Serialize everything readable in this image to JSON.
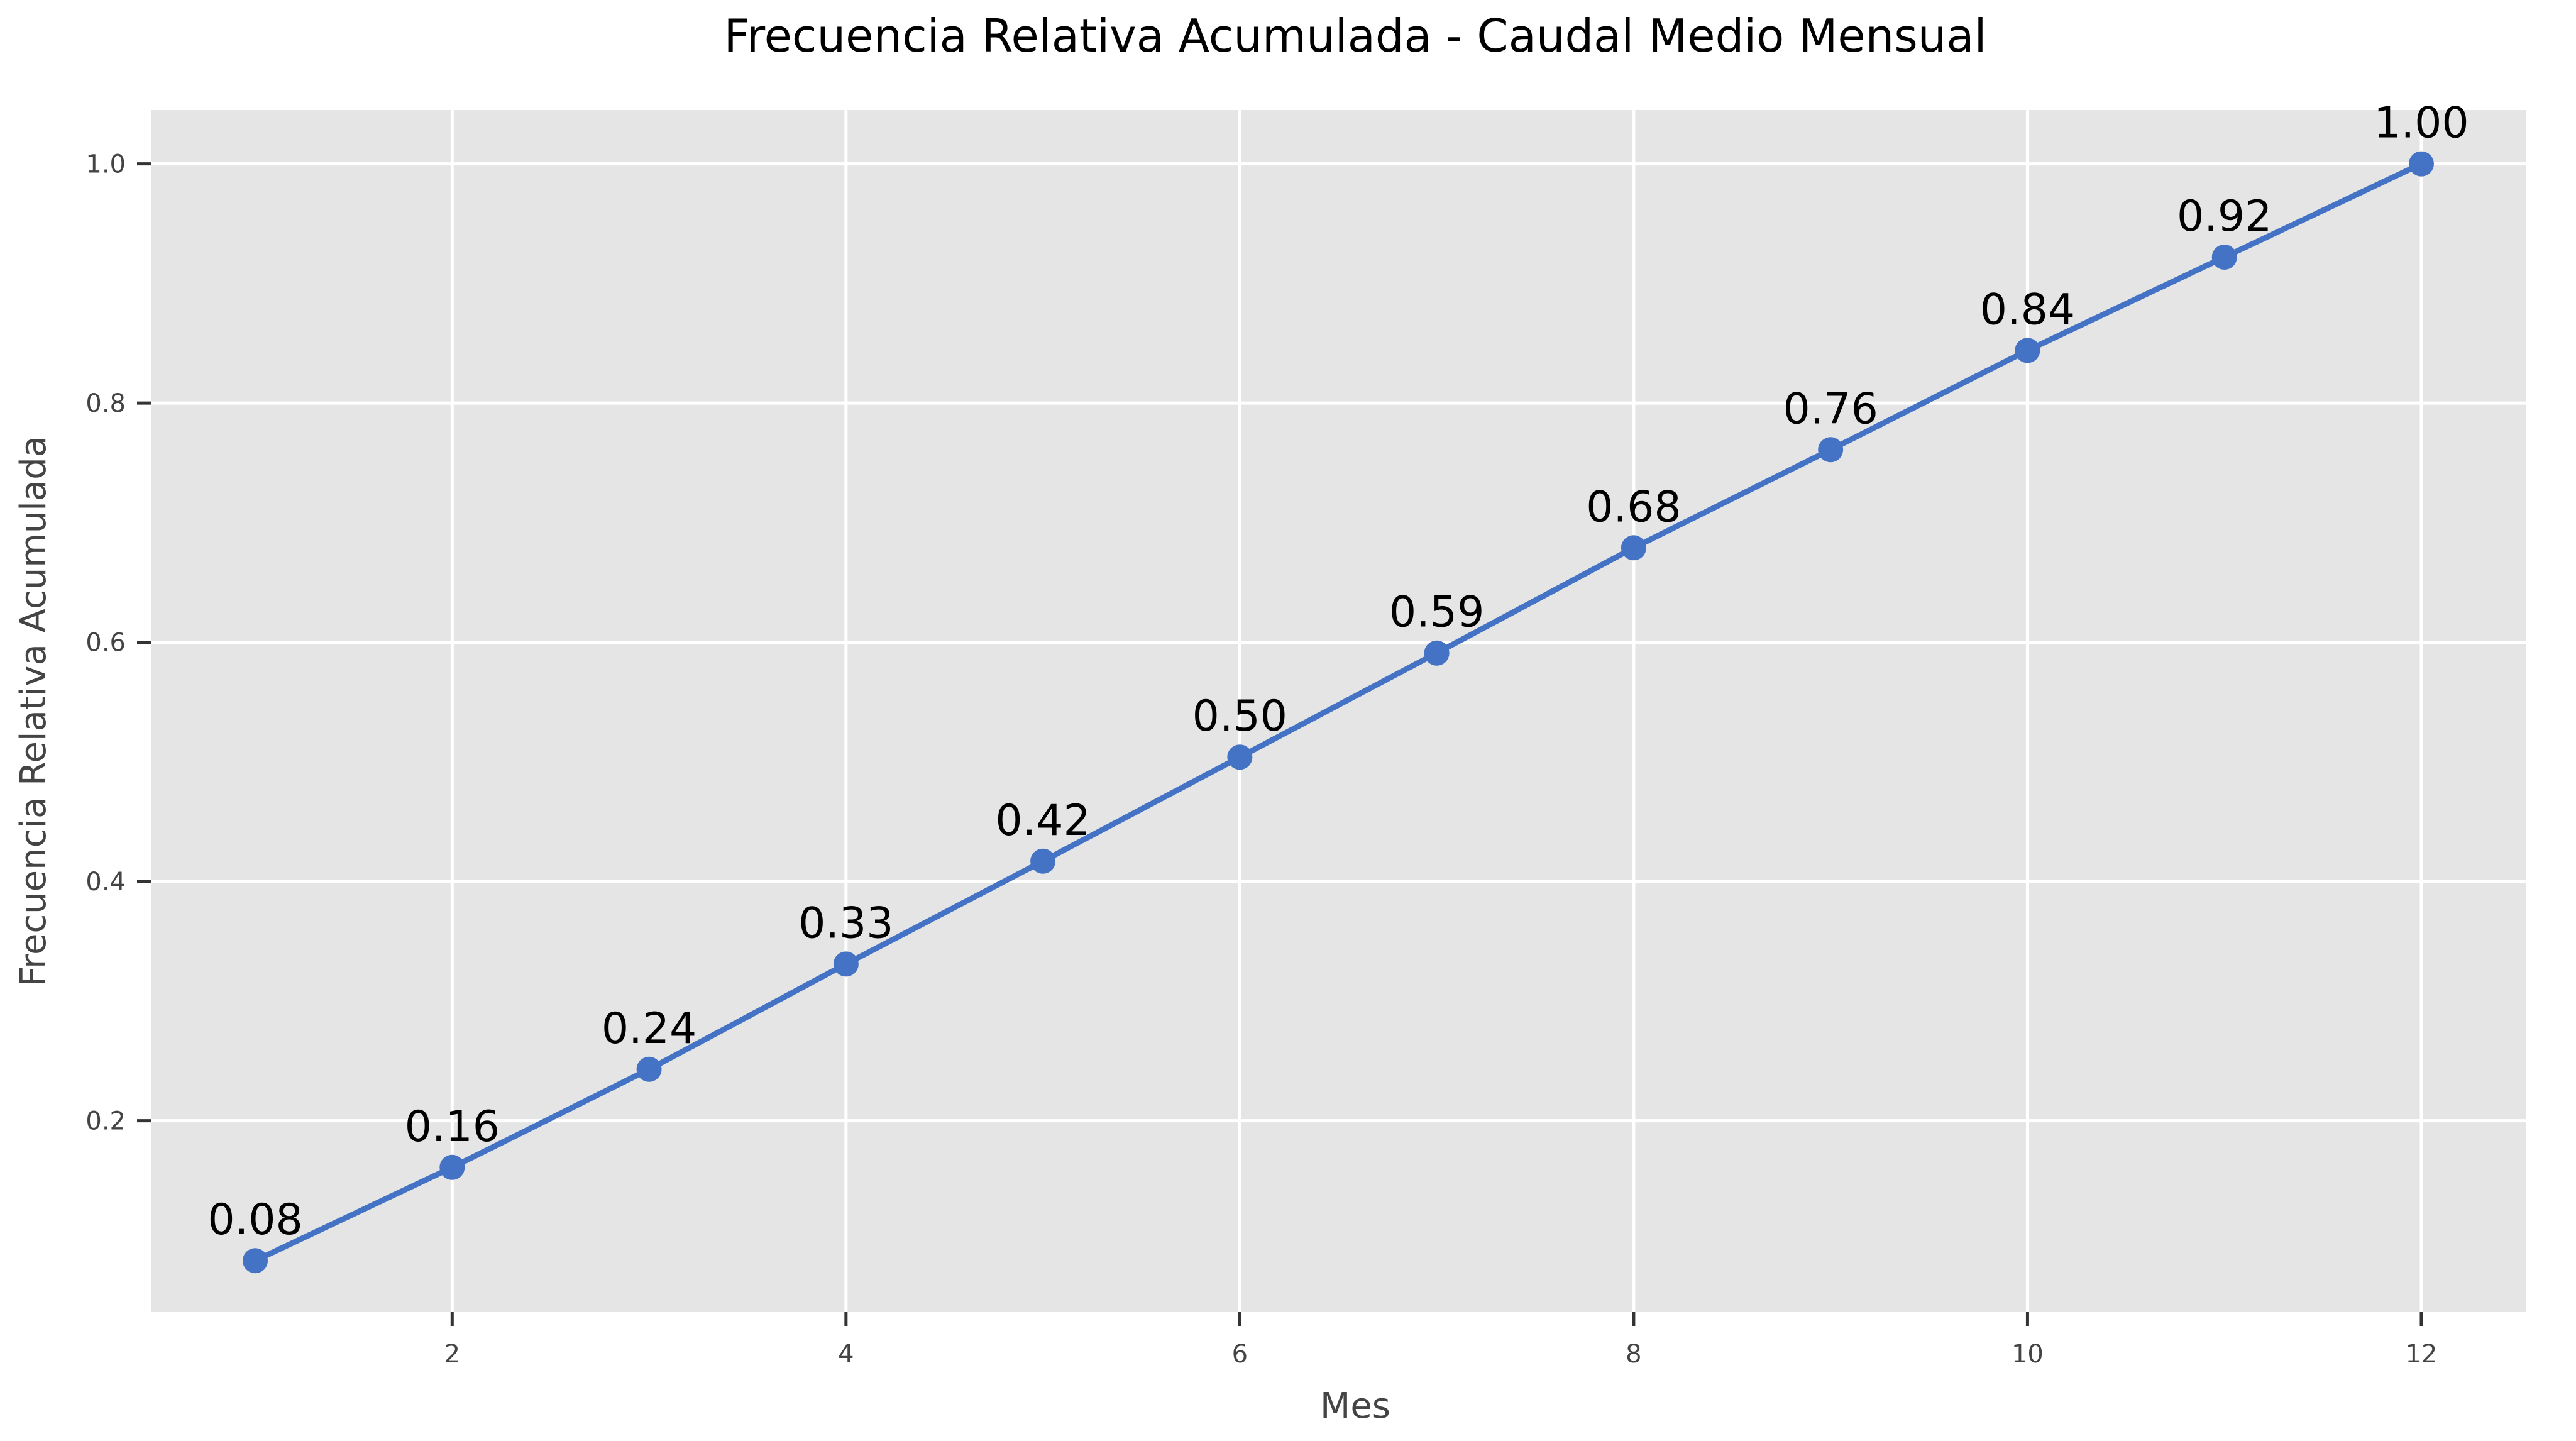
{
  "chart_data": {
    "type": "line",
    "title": "Frecuencia Relativa Acumulada - Caudal Medio Mensual",
    "xlabel": "Mes",
    "ylabel": "Frecuencia Relativa Acumulada",
    "xlim": [
      0.47,
      12.53
    ],
    "ylim": [
      0.04,
      1.045
    ],
    "x_ticks": [
      2,
      4,
      6,
      8,
      10,
      12
    ],
    "x_tick_labels": [
      "2",
      "4",
      "6",
      "8",
      "10",
      "12"
    ],
    "y_ticks": [
      0.2,
      0.4,
      0.6,
      0.8,
      1.0
    ],
    "y_tick_labels": [
      "0.2",
      "0.4",
      "0.6",
      "0.8",
      "1.0"
    ],
    "grid": true,
    "legend": "none",
    "colors": {
      "series": "#4472c4",
      "background": "#e5e5e5",
      "grid": "#ffffff"
    },
    "series": [
      {
        "x": [
          1,
          2,
          3,
          4,
          5,
          6,
          7,
          8,
          9,
          10,
          11,
          12
        ],
        "values": [
          0.083,
          0.161,
          0.243,
          0.331,
          0.417,
          0.504,
          0.591,
          0.679,
          0.761,
          0.844,
          0.922,
          1.0
        ],
        "data_labels": [
          "0.08",
          "0.16",
          "0.24",
          "0.33",
          "0.42",
          "0.50",
          "0.59",
          "0.68",
          "0.76",
          "0.84",
          "0.92",
          "1.00"
        ]
      }
    ]
  }
}
